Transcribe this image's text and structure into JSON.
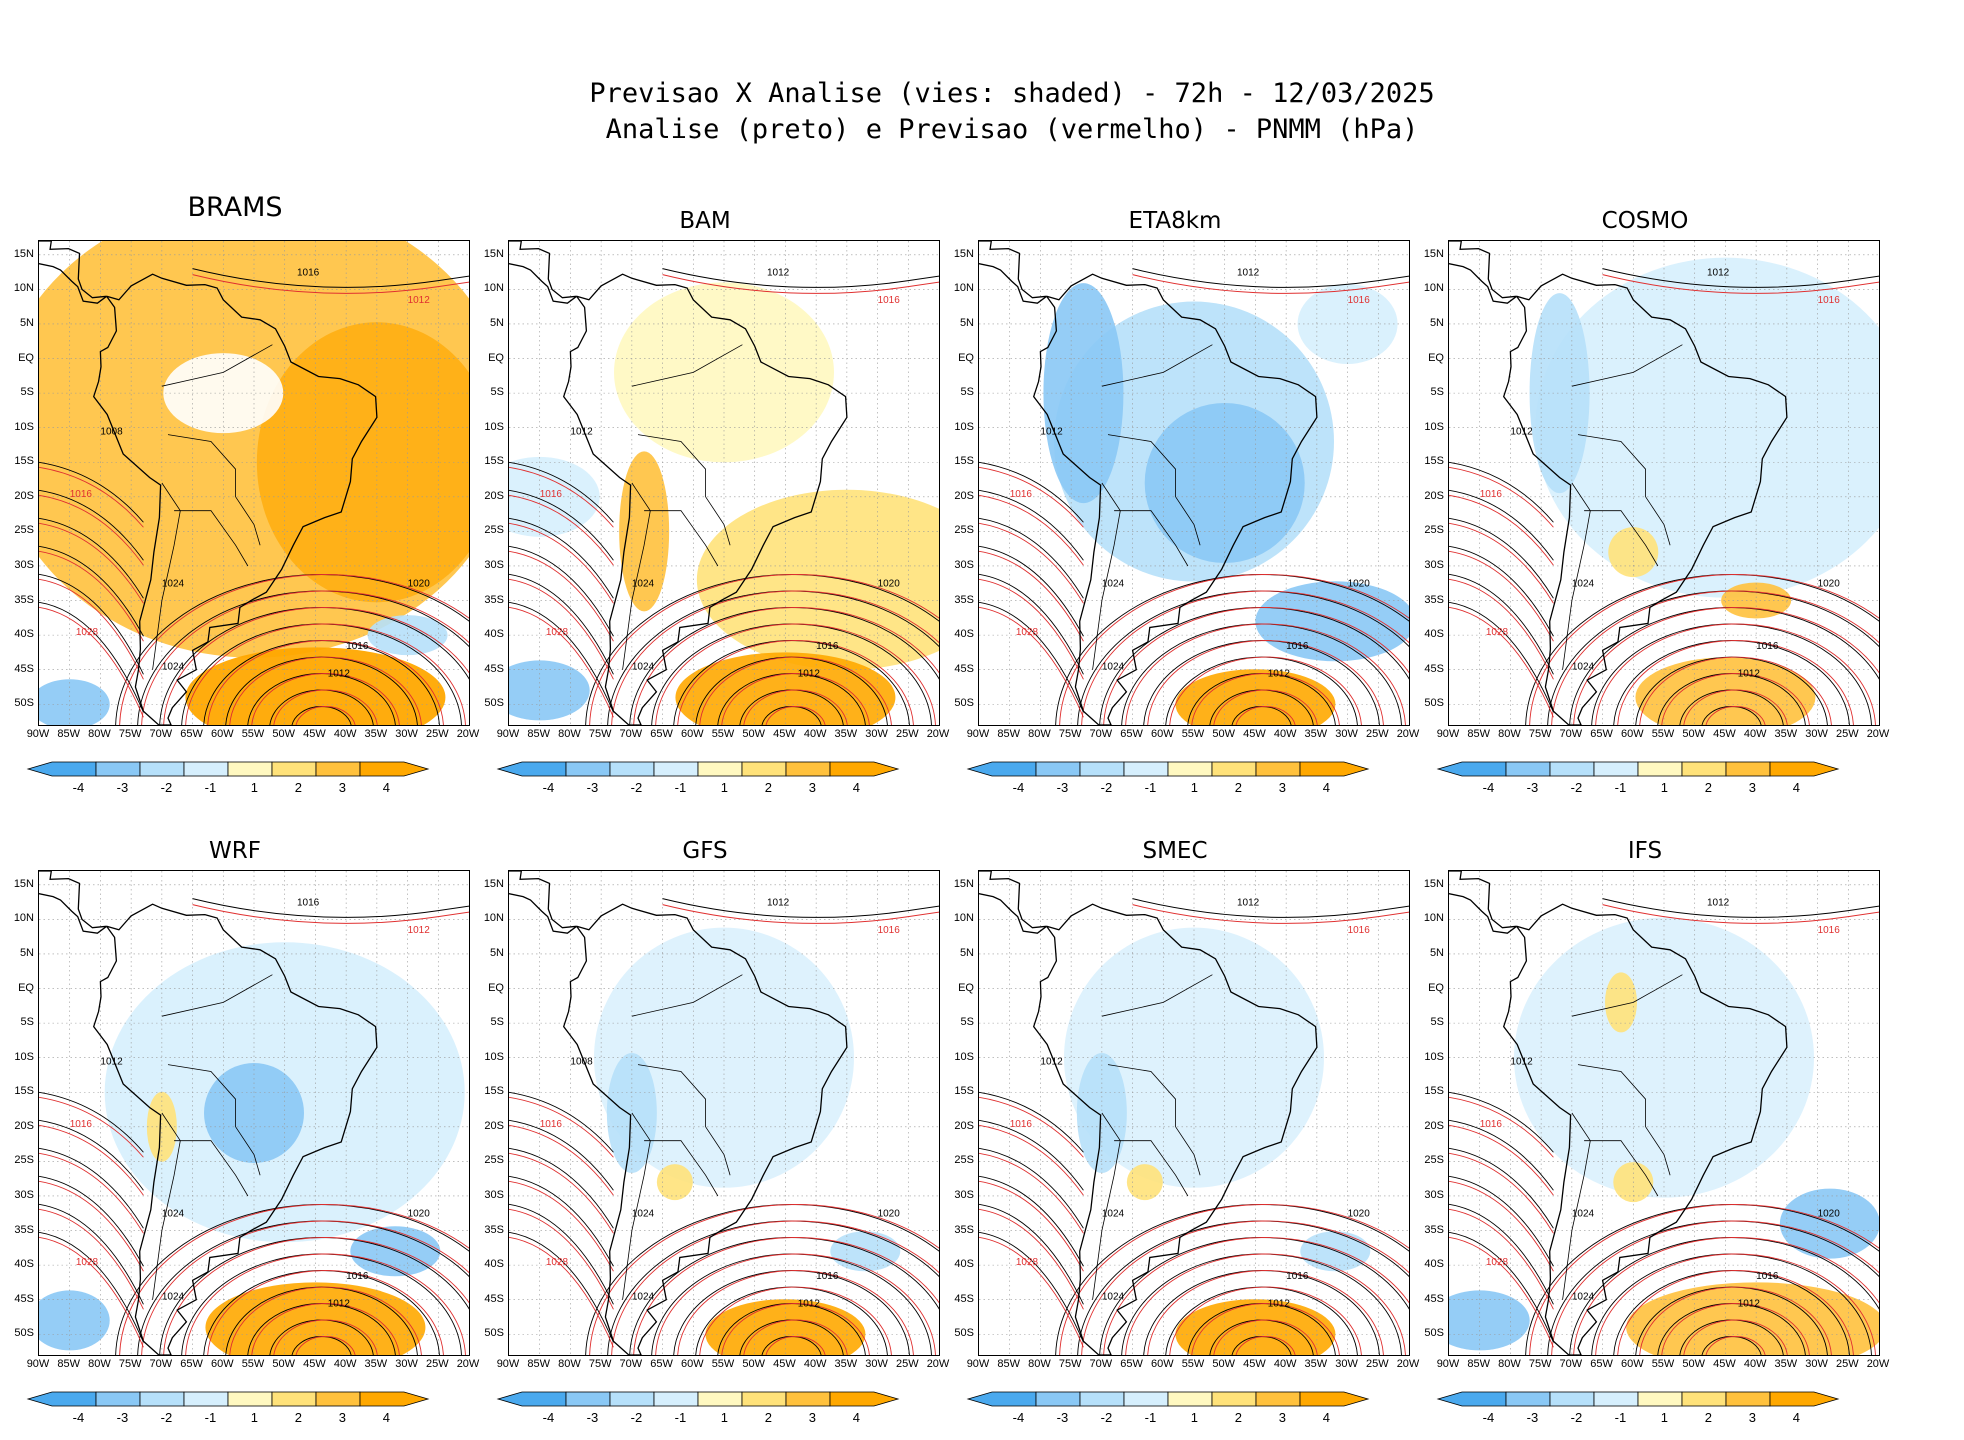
{
  "title": {
    "line1": "Previsao X Analise (vies: shaded) - 72h - 12/03/2025",
    "line2": "Analise (preto) e Previsao (vermelho) - PNMM (hPa)"
  },
  "colors": {
    "neg4": "#4aa9ee",
    "neg3": "#8ac8f5",
    "neg2": "#b6e0fa",
    "neg1": "#d6effd",
    "pos1": "#fff8c0",
    "pos2": "#ffe27a",
    "pos3": "#ffc13d",
    "pos4": "#ffa800",
    "analysis_contour": "#000000",
    "forecast_contour": "#e03030",
    "land": "#ffffff"
  },
  "colorbar": {
    "labels": [
      "-4",
      "-3",
      "-2",
      "-1",
      "1",
      "2",
      "3",
      "4"
    ]
  },
  "lat_labels": [
    "15N",
    "10N",
    "5N",
    "EQ",
    "5S",
    "10S",
    "15S",
    "20S",
    "25S",
    "30S",
    "35S",
    "40S",
    "45S",
    "50S"
  ],
  "lon_labels": [
    "90W",
    "85W",
    "80W",
    "75W",
    "70W",
    "65W",
    "60W",
    "55W",
    "50W",
    "45W",
    "40W",
    "35W",
    "30W",
    "25W",
    "20W"
  ],
  "panels": [
    {
      "name": "BRAMS",
      "bias": "warm",
      "labels": [
        "1016",
        "1012",
        "1008",
        "1016",
        "1020",
        "1024",
        "1028",
        "1024",
        "1016",
        "1012"
      ]
    },
    {
      "name": "BAM",
      "bias": "warm-ocean",
      "labels": [
        "1012",
        "1016",
        "1012",
        "1016",
        "1020",
        "1024",
        "1028",
        "1024",
        "1016",
        "1012"
      ]
    },
    {
      "name": "ETA8km",
      "bias": "cool",
      "labels": [
        "1012",
        "1016",
        "1012",
        "1016",
        "1020",
        "1024",
        "1028",
        "1024",
        "1016",
        "1012"
      ]
    },
    {
      "name": "COSMO",
      "bias": "cool-light",
      "labels": [
        "1012",
        "1016",
        "1012",
        "1016",
        "1020",
        "1024",
        "1028",
        "1024",
        "1016",
        "1012"
      ]
    },
    {
      "name": "WRF",
      "bias": "mixed",
      "labels": [
        "1016",
        "1012",
        "1012",
        "1016",
        "1020",
        "1024",
        "1028",
        "1024",
        "1016",
        "1012"
      ]
    },
    {
      "name": "GFS",
      "bias": "neutral",
      "labels": [
        "1012",
        "1016",
        "1008",
        "1016",
        "1020",
        "1024",
        "1028",
        "1024",
        "1016",
        "1012"
      ]
    },
    {
      "name": "SMEC",
      "bias": "neutral",
      "labels": [
        "1012",
        "1016",
        "1012",
        "1016",
        "1020",
        "1024",
        "1028",
        "1024",
        "1016",
        "1012"
      ]
    },
    {
      "name": "IFS",
      "bias": "mixed-light",
      "labels": [
        "1012",
        "1016",
        "1012",
        "1016",
        "1020",
        "1024",
        "1028",
        "1024",
        "1016",
        "1012"
      ]
    }
  ]
}
